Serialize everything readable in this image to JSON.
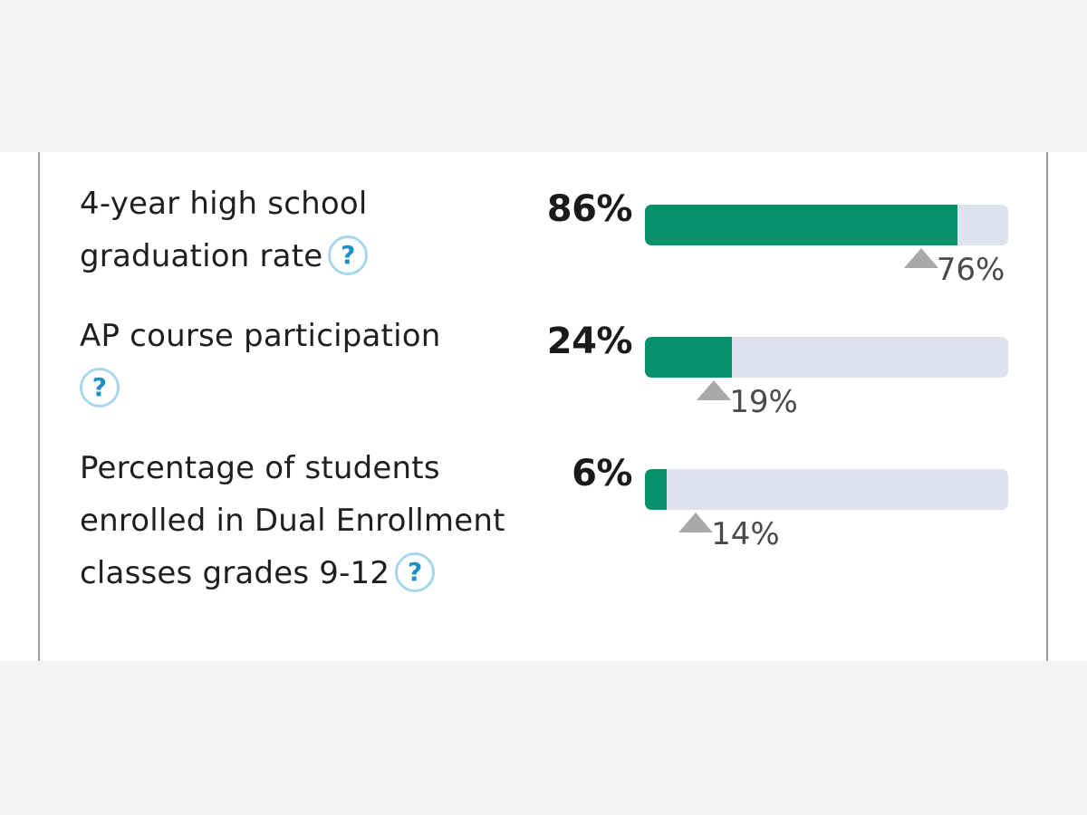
{
  "metrics": [
    {
      "label": "4-year high school graduation rate",
      "value": "86%",
      "fill_fraction": 0.86,
      "benchmark": "76%",
      "benchmark_fraction": 0.76
    },
    {
      "label": "AP course participation",
      "value": "24%",
      "fill_fraction": 0.24,
      "benchmark": "19%",
      "benchmark_fraction": 0.19
    },
    {
      "label": "Percentage of students enrolled in Dual Enrollment classes grades 9-12",
      "value": "6%",
      "fill_fraction": 0.06,
      "benchmark": "14%",
      "benchmark_fraction": 0.14
    }
  ],
  "help_icon_glyph": "?",
  "colors": {
    "bar_fill": "#07916b",
    "bar_track": "#dfe1ee",
    "benchmark_marker": "#a9a9a9",
    "help_icon": "#1e90c8"
  }
}
